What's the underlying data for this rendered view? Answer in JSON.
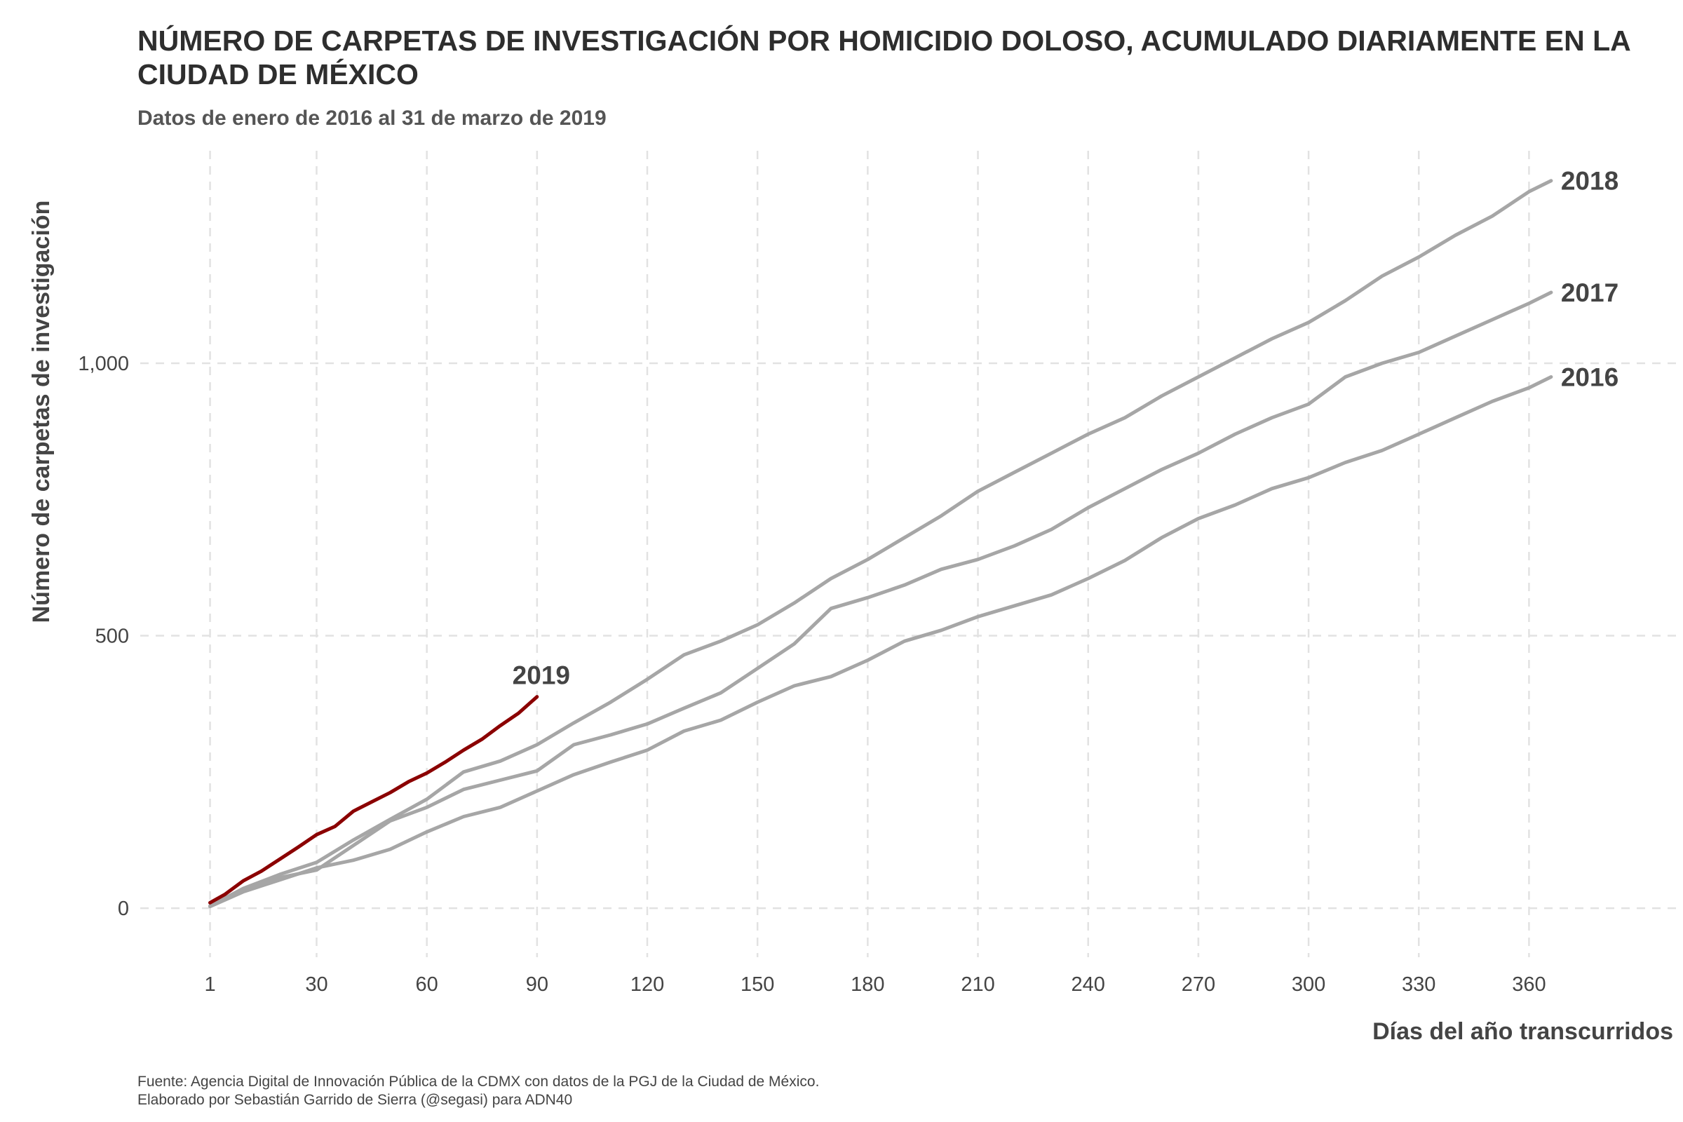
{
  "chart_data": {
    "type": "line",
    "title": "NÚMERO DE CARPETAS DE INVESTIGACIÓN POR HOMICIDIO DOLOSO, ACUMULADO DIARIAMENTE EN LA CIUDAD DE MÉXICO",
    "subtitle": "Datos de enero de 2016 al 31 de marzo de 2019",
    "xlabel": "Días del año transcurridos",
    "ylabel": "Número de carpetas de investigación",
    "caption_lines": [
      "Fuente: Agencia Digital de Innovación Pública de la CDMX con datos de la PGJ de la Ciudad de México.",
      "Elaborado por Sebastián Garrido de Sierra (@segasi) para ADN40"
    ],
    "xlim": [
      -18,
      400
    ],
    "ylim": [
      -90,
      1390
    ],
    "x_ticks": [
      1,
      30,
      60,
      90,
      120,
      150,
      180,
      210,
      240,
      270,
      300,
      330,
      360
    ],
    "x_tick_labels": [
      "1",
      "30",
      "60",
      "90",
      "120",
      "150",
      "180",
      "210",
      "240",
      "270",
      "300",
      "330",
      "360"
    ],
    "y_ticks": [
      0,
      500,
      1000
    ],
    "y_tick_labels": [
      "0",
      "500",
      "1,000"
    ],
    "grid": true,
    "series": [
      {
        "name": "2016",
        "color": "#a6a6a6",
        "x": [
          1,
          10,
          20,
          30,
          40,
          50,
          60,
          70,
          80,
          90,
          100,
          110,
          120,
          130,
          140,
          150,
          160,
          170,
          180,
          190,
          200,
          210,
          220,
          230,
          240,
          250,
          260,
          270,
          280,
          290,
          300,
          310,
          320,
          330,
          340,
          350,
          360,
          366
        ],
        "y": [
          3,
          30,
          52,
          74,
          88,
          108,
          140,
          168,
          185,
          215,
          245,
          268,
          290,
          325,
          345,
          378,
          408,
          425,
          455,
          490,
          510,
          535,
          555,
          575,
          605,
          638,
          680,
          715,
          740,
          770,
          790,
          818,
          840,
          870,
          900,
          930,
          955,
          975
        ]
      },
      {
        "name": "2017",
        "color": "#a6a6a6",
        "x": [
          1,
          10,
          20,
          30,
          40,
          50,
          60,
          70,
          80,
          90,
          100,
          110,
          120,
          130,
          140,
          150,
          160,
          170,
          180,
          190,
          200,
          210,
          220,
          230,
          240,
          250,
          260,
          270,
          280,
          290,
          300,
          310,
          320,
          330,
          340,
          350,
          360,
          366
        ],
        "y": [
          4,
          34,
          56,
          70,
          115,
          160,
          185,
          218,
          235,
          252,
          300,
          318,
          338,
          367,
          395,
          440,
          485,
          550,
          570,
          593,
          622,
          640,
          665,
          695,
          735,
          770,
          805,
          835,
          870,
          900,
          925,
          975,
          1000,
          1020,
          1050,
          1080,
          1110,
          1130
        ]
      },
      {
        "name": "2018",
        "color": "#a6a6a6",
        "x": [
          1,
          10,
          20,
          30,
          40,
          50,
          60,
          70,
          80,
          90,
          100,
          110,
          120,
          130,
          140,
          150,
          160,
          170,
          180,
          190,
          200,
          210,
          220,
          230,
          240,
          250,
          260,
          270,
          280,
          290,
          300,
          310,
          320,
          330,
          340,
          350,
          360,
          366
        ],
        "y": [
          4,
          36,
          62,
          84,
          125,
          163,
          200,
          250,
          270,
          300,
          340,
          378,
          420,
          465,
          490,
          520,
          560,
          605,
          640,
          680,
          720,
          765,
          800,
          835,
          870,
          900,
          940,
          975,
          1010,
          1045,
          1075,
          1115,
          1160,
          1195,
          1235,
          1270,
          1315,
          1335
        ]
      },
      {
        "name": "2019",
        "color": "#8b0000",
        "x": [
          1,
          5,
          10,
          15,
          20,
          25,
          30,
          35,
          40,
          45,
          50,
          55,
          60,
          65,
          70,
          75,
          80,
          85,
          90
        ],
        "y": [
          10,
          25,
          50,
          68,
          90,
          112,
          135,
          150,
          178,
          195,
          212,
          232,
          248,
          268,
          290,
          310,
          335,
          358,
          388
        ]
      }
    ]
  }
}
